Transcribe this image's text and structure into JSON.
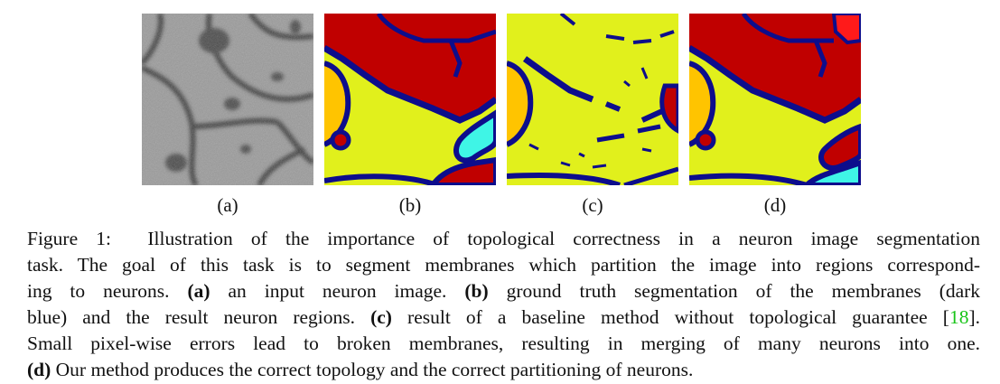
{
  "figure": {
    "panels": [
      {
        "id": "a",
        "label": "(a)"
      },
      {
        "id": "b",
        "label": "(b)"
      },
      {
        "id": "c",
        "label": "(c)"
      },
      {
        "id": "d",
        "label": "(d)"
      }
    ],
    "colors": {
      "membrane": "#0d0d8c",
      "region_red": "#c00000",
      "region_yellow_green": "#e1f01c",
      "region_orange": "#ffc400",
      "region_cyan": "#3ff5e6",
      "region_bright_red": "#ff1a1a",
      "reference_link": "#19c419"
    },
    "caption": {
      "line1_prefix": "Figure 1:",
      "line1_rest": "Illustration of the importance of topological correctness in a neuron image segmentation",
      "line2": "task. The goal of this task is to segment membranes which partition the image into regions correspond-",
      "line3_a": "ing to neurons.",
      "line3_b_bold": "(a)",
      "line3_c": "an input neuron image.",
      "line3_d_bold": "(b)",
      "line3_e": "ground truth segmentation of the membranes (dark",
      "line4_a": "blue) and the result neuron regions.",
      "line4_b_bold": "(c)",
      "line4_c": "result of a baseline method without topological guarantee [",
      "line4_ref": "18",
      "line4_d": "].",
      "line5": "Small pixel-wise errors lead to broken membranes, resulting in merging of many neurons into one.",
      "line6_bold": "(d)",
      "line6_rest": "Our method produces the correct topology and the correct partitioning of neurons."
    }
  }
}
